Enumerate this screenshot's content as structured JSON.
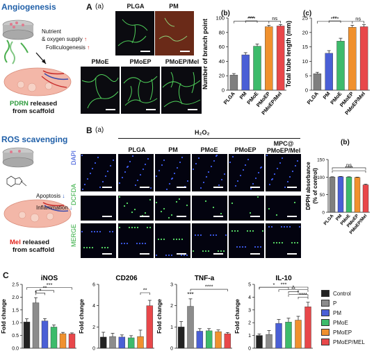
{
  "sections": {
    "angiogenesis": {
      "title": "Angiogenesis",
      "note1": "Nutrient",
      "note2": "& oxygen supply",
      "note3": "Folliculogenesis",
      "release_prefix": "PDRN",
      "release_suffix": " released",
      "release_line2": "from scaffold"
    },
    "ros": {
      "title": "ROS scavenging",
      "note1": "Apoptosis",
      "note2": "Inflammation",
      "release_prefix": "Mel",
      "release_suffix": " released",
      "release_line2": "from scaffold"
    }
  },
  "panel_labels": {
    "A": "A",
    "Aa": "(a)",
    "Ab": "(b)",
    "Ac": "(c)",
    "B": "B",
    "Ba": "(a)",
    "Bb": "(b)",
    "C": "C"
  },
  "images_A": {
    "top": [
      "PLGA",
      "PM"
    ],
    "bottom": [
      "PMoE",
      "PMoEP",
      "PMoEP/Mel"
    ]
  },
  "images_B": {
    "h2o2": "H₂O₂",
    "columns": [
      "PLGA",
      "PM",
      "PMoE",
      "PMoEP",
      "MPC@\nPMoEP/Mel"
    ],
    "rows": [
      "DAPI",
      "DCFDA",
      "MERGE"
    ]
  },
  "colors": {
    "PLGA": "#7f7f7f",
    "PM": "#4a5fd6",
    "PMoE": "#3dbb6b",
    "PMoEP": "#f0912e",
    "PMoEP_Mel": "#e8474a",
    "Control": "#222222",
    "P": "#8c8c8c",
    "accent_blue": "#1f5fa8",
    "arrow_red": "#e3261f"
  },
  "chart_data": [
    {
      "id": "Ab",
      "type": "bar",
      "categories": [
        "PLGA",
        "PM",
        "PMoE",
        "PMoEP",
        "PMoEP/Mel"
      ],
      "values": [
        21,
        49,
        61,
        88,
        89
      ],
      "errors": [
        2,
        3,
        3,
        2,
        2
      ],
      "ylabel": "Number of branch point",
      "ylim": [
        0,
        100
      ],
      "yticks": [
        0,
        20,
        40,
        60,
        80,
        100
      ],
      "significance": [
        "***",
        "****",
        "ns"
      ]
    },
    {
      "id": "Ac",
      "type": "bar",
      "categories": [
        "PLGA",
        "PM",
        "PMoE",
        "PMoEP",
        "PMoEP/Mel"
      ],
      "values": [
        5.7,
        12.8,
        17,
        21.8,
        22
      ],
      "errors": [
        0.5,
        0.9,
        1.0,
        0.7,
        0.7
      ],
      "ylabel": "Total tube length (mm)",
      "ylim": [
        0,
        25
      ],
      "yticks": [
        0,
        5,
        10,
        15,
        20,
        25
      ],
      "significance": [
        "**",
        "****",
        "ns"
      ]
    },
    {
      "id": "Bb",
      "type": "bar",
      "categories": [
        "PLGA",
        "PM",
        "PMoE",
        "PMoEP",
        "PMoEP/Mel"
      ],
      "values": [
        100,
        101,
        100,
        99,
        78
      ],
      "errors": [
        1,
        1,
        1,
        1,
        2
      ],
      "ylabel": "DPPH absorbance\n(% of control)",
      "ylim": [
        0,
        150
      ],
      "yticks": [
        0,
        50,
        100,
        150
      ],
      "significance": [
        "****",
        "ns"
      ]
    },
    {
      "id": "C-iNOS",
      "type": "bar",
      "title": "iNOS",
      "categories": [
        "Control",
        "P",
        "PM",
        "PMoE",
        "PMoEP",
        "PMoEP/MEL"
      ],
      "values": [
        1.03,
        1.78,
        1.07,
        0.83,
        0.57,
        0.56
      ],
      "errors": [
        0.12,
        0.2,
        0.09,
        0.08,
        0.05,
        0.04
      ],
      "ylabel": "Fold change",
      "ylim": [
        0,
        2.5
      ],
      "yticks": [
        0.0,
        0.5,
        1.0,
        1.5,
        2.0,
        2.5
      ],
      "significance": [
        "*",
        "*",
        "**",
        "***"
      ]
    },
    {
      "id": "C-CD206",
      "type": "bar",
      "title": "CD206",
      "categories": [
        "Control",
        "P",
        "PM",
        "PMoE",
        "PMoEP",
        "PMoEP/MEL"
      ],
      "values": [
        1.05,
        1.1,
        1.05,
        0.98,
        1.1,
        4.0
      ],
      "errors": [
        0.45,
        0.3,
        0.2,
        0.2,
        0.6,
        0.5
      ],
      "ylabel": "Fold change",
      "ylim": [
        0,
        6
      ],
      "yticks": [
        0,
        2,
        4,
        6
      ],
      "significance": [
        "**"
      ]
    },
    {
      "id": "C-TNF-a",
      "type": "bar",
      "title": "TNF-a",
      "categories": [
        "Control",
        "P",
        "PM",
        "PMoE",
        "PMoEP",
        "PMoEP/MEL"
      ],
      "values": [
        1.0,
        1.97,
        0.8,
        0.82,
        0.78,
        0.68
      ],
      "errors": [
        0.25,
        0.35,
        0.12,
        0.1,
        0.08,
        0.06
      ],
      "ylabel": "Fold change",
      "ylim": [
        0,
        3
      ],
      "yticks": [
        0,
        1,
        2,
        3
      ],
      "significance": [
        "***",
        "****"
      ]
    },
    {
      "id": "C-IL-10",
      "type": "bar",
      "title": "IL-10",
      "categories": [
        "Control",
        "P",
        "PM",
        "PMoE",
        "PMoEP",
        "PMoEP/MEL"
      ],
      "values": [
        1.0,
        1.08,
        1.95,
        2.05,
        2.2,
        3.25
      ],
      "errors": [
        0.12,
        0.3,
        0.3,
        0.3,
        0.3,
        0.35
      ],
      "ylabel": "Fold change",
      "ylim": [
        0,
        5
      ],
      "yticks": [
        0,
        1,
        2,
        3,
        4,
        5
      ],
      "significance": [
        "*",
        "*",
        "**",
        "*",
        "****",
        "***"
      ]
    }
  ],
  "legend": [
    "Control",
    "P",
    "PM",
    "PMoE",
    "PMoEP",
    "PMoEP/MEL"
  ]
}
